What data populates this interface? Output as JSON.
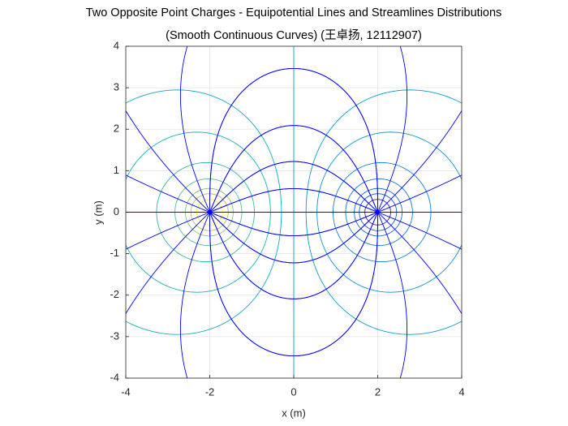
{
  "chart_data": {
    "type": "contour",
    "title": [
      "Two Opposite Point Charges - Equipotential Lines and Streamlines Distributions",
      "(Smooth Continuous Curves) (王卓扬, 12112907)"
    ],
    "xlabel": "x (m)",
    "ylabel": "y (m)",
    "xlim": [
      -4,
      4
    ],
    "ylim": [
      -4,
      4
    ],
    "xticks": [
      -4,
      -2,
      0,
      2,
      4
    ],
    "yticks": [
      -4,
      -3,
      -2,
      -1,
      0,
      1,
      2,
      3,
      4
    ],
    "grid": true,
    "charges": [
      {
        "x": -2,
        "y": 0,
        "q": 1
      },
      {
        "x": 2,
        "y": 0,
        "q": -1
      }
    ],
    "levels": [
      -3,
      -2,
      -1.5,
      -1,
      -0.6,
      -0.3,
      -0.15,
      0,
      0.15,
      0.3,
      0.6,
      1,
      1.5,
      2,
      3
    ],
    "colormap": "parula",
    "streamlines": 16,
    "streamline_color": "#0000ff"
  }
}
